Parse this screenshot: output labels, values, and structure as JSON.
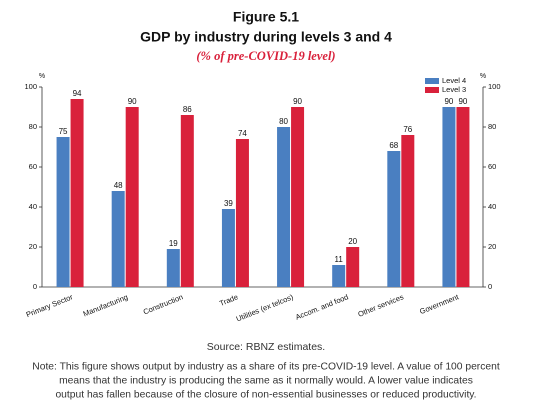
{
  "chart_data": {
    "type": "bar",
    "title": "Figure 5.1",
    "subtitle": "GDP by industry during levels 3 and 4",
    "caption": "(% of pre-COVID-19 level)",
    "ylabel": "%",
    "y2label": "%",
    "categories": [
      "Primary Sector",
      "Manufacturing",
      "Construction",
      "Trade",
      "Utilities (ex telcos)",
      "Accom. and food",
      "Other services",
      "Government"
    ],
    "series": [
      {
        "name": "Level 4",
        "color": "#4a7fc1",
        "values": [
          75,
          48,
          19,
          39,
          80,
          11,
          68,
          90
        ]
      },
      {
        "name": "Level 3",
        "color": "#d9213b",
        "values": [
          94,
          90,
          86,
          74,
          90,
          20,
          76,
          90
        ]
      }
    ],
    "ylim": [
      0,
      100
    ],
    "yticks": [
      0,
      20,
      40,
      60,
      80,
      100
    ],
    "y2lim": [
      0,
      100
    ],
    "y2ticks": [
      0,
      20,
      40,
      60,
      80,
      100
    ],
    "legend": "upper right",
    "source": "Source: RBNZ estimates.",
    "note": [
      "Note: This figure shows output by industry as a share of its pre-COVID-19 level. A value of 100 percent",
      "means that the industry is producing the same as it normally would. A lower value indicates",
      "output has fallen because of the closure of non-essential businesses or reduced productivity."
    ]
  }
}
